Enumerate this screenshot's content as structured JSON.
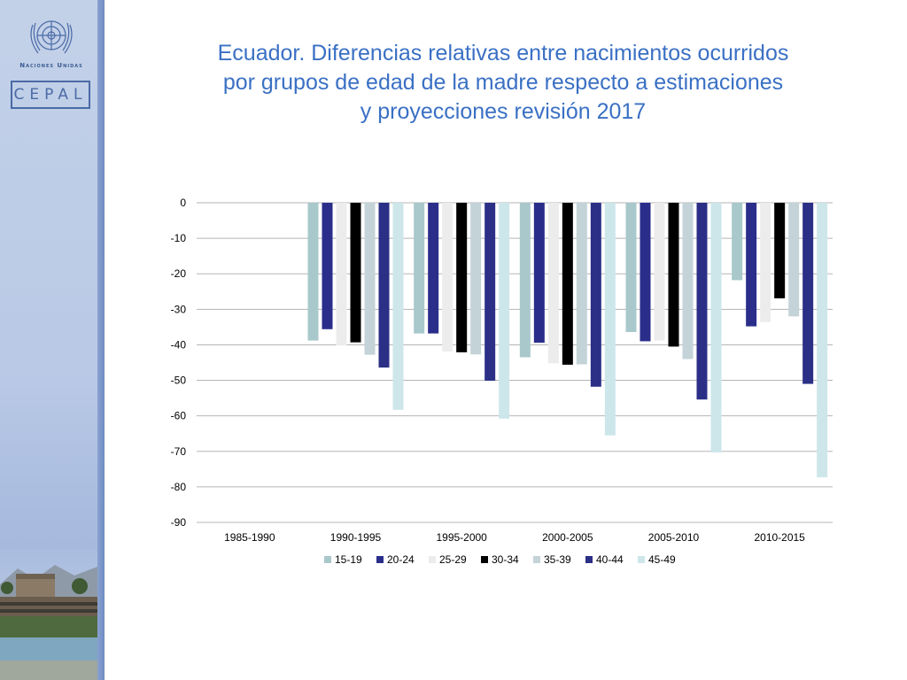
{
  "branding": {
    "un_name": "Naciones Unidas",
    "cepal": "CEPAL"
  },
  "icons": {
    "un_emblem": "un-emblem-icon"
  },
  "colors": {
    "title": "#3a70c4",
    "sidebar": "#b9c9e6",
    "series": [
      "#a9c8cb",
      "#2a2e8a",
      "#ececec",
      "#000000",
      "#c3d3d8",
      "#2b2f86",
      "#cde6ea"
    ]
  },
  "chart_data": {
    "type": "bar",
    "title": "Ecuador. Diferencias relativas entre nacimientos ocurridos por grupos de edad de la madre respecto a estimaciones y proyecciones revisión 2017",
    "title_lines": [
      "Ecuador. Diferencias relativas entre nacimientos ocurridos",
      "por grupos de edad de la madre respecto a estimaciones",
      "y proyecciones revisión 2017"
    ],
    "categories": [
      "1985-1990",
      "1990-1995",
      "1995-2000",
      "2000-2005",
      "2005-2010",
      "2010-2015"
    ],
    "series": [
      {
        "name": "15-19",
        "values": [
          null,
          -38.8,
          -36.8,
          -43.5,
          -36.4,
          -21.8
        ]
      },
      {
        "name": "20-24",
        "values": [
          null,
          -35.6,
          -36.8,
          -39.4,
          -39.0,
          -34.8
        ]
      },
      {
        "name": "25-29",
        "values": [
          null,
          -40.2,
          -41.9,
          -45.2,
          -38.8,
          -33.6
        ]
      },
      {
        "name": "30-34",
        "values": [
          null,
          -39.3,
          -42.1,
          -45.6,
          -40.5,
          -26.9
        ]
      },
      {
        "name": "35-39",
        "values": [
          null,
          -42.8,
          -42.7,
          -45.5,
          -44.0,
          -32.0
        ]
      },
      {
        "name": "40-44",
        "values": [
          null,
          -46.4,
          -50.1,
          -51.8,
          -55.4,
          -51.0
        ]
      },
      {
        "name": "45-49",
        "values": [
          null,
          -58.3,
          -60.8,
          -65.5,
          -70.3,
          -77.3
        ]
      }
    ],
    "xlabel": "",
    "ylabel": "",
    "ylim": [
      -90,
      0
    ],
    "yticks": [
      "0",
      "-10",
      "-20",
      "-30",
      "-40",
      "-50",
      "-60",
      "-70",
      "-80",
      "-90"
    ],
    "grid": true,
    "legend_position": "bottom"
  }
}
